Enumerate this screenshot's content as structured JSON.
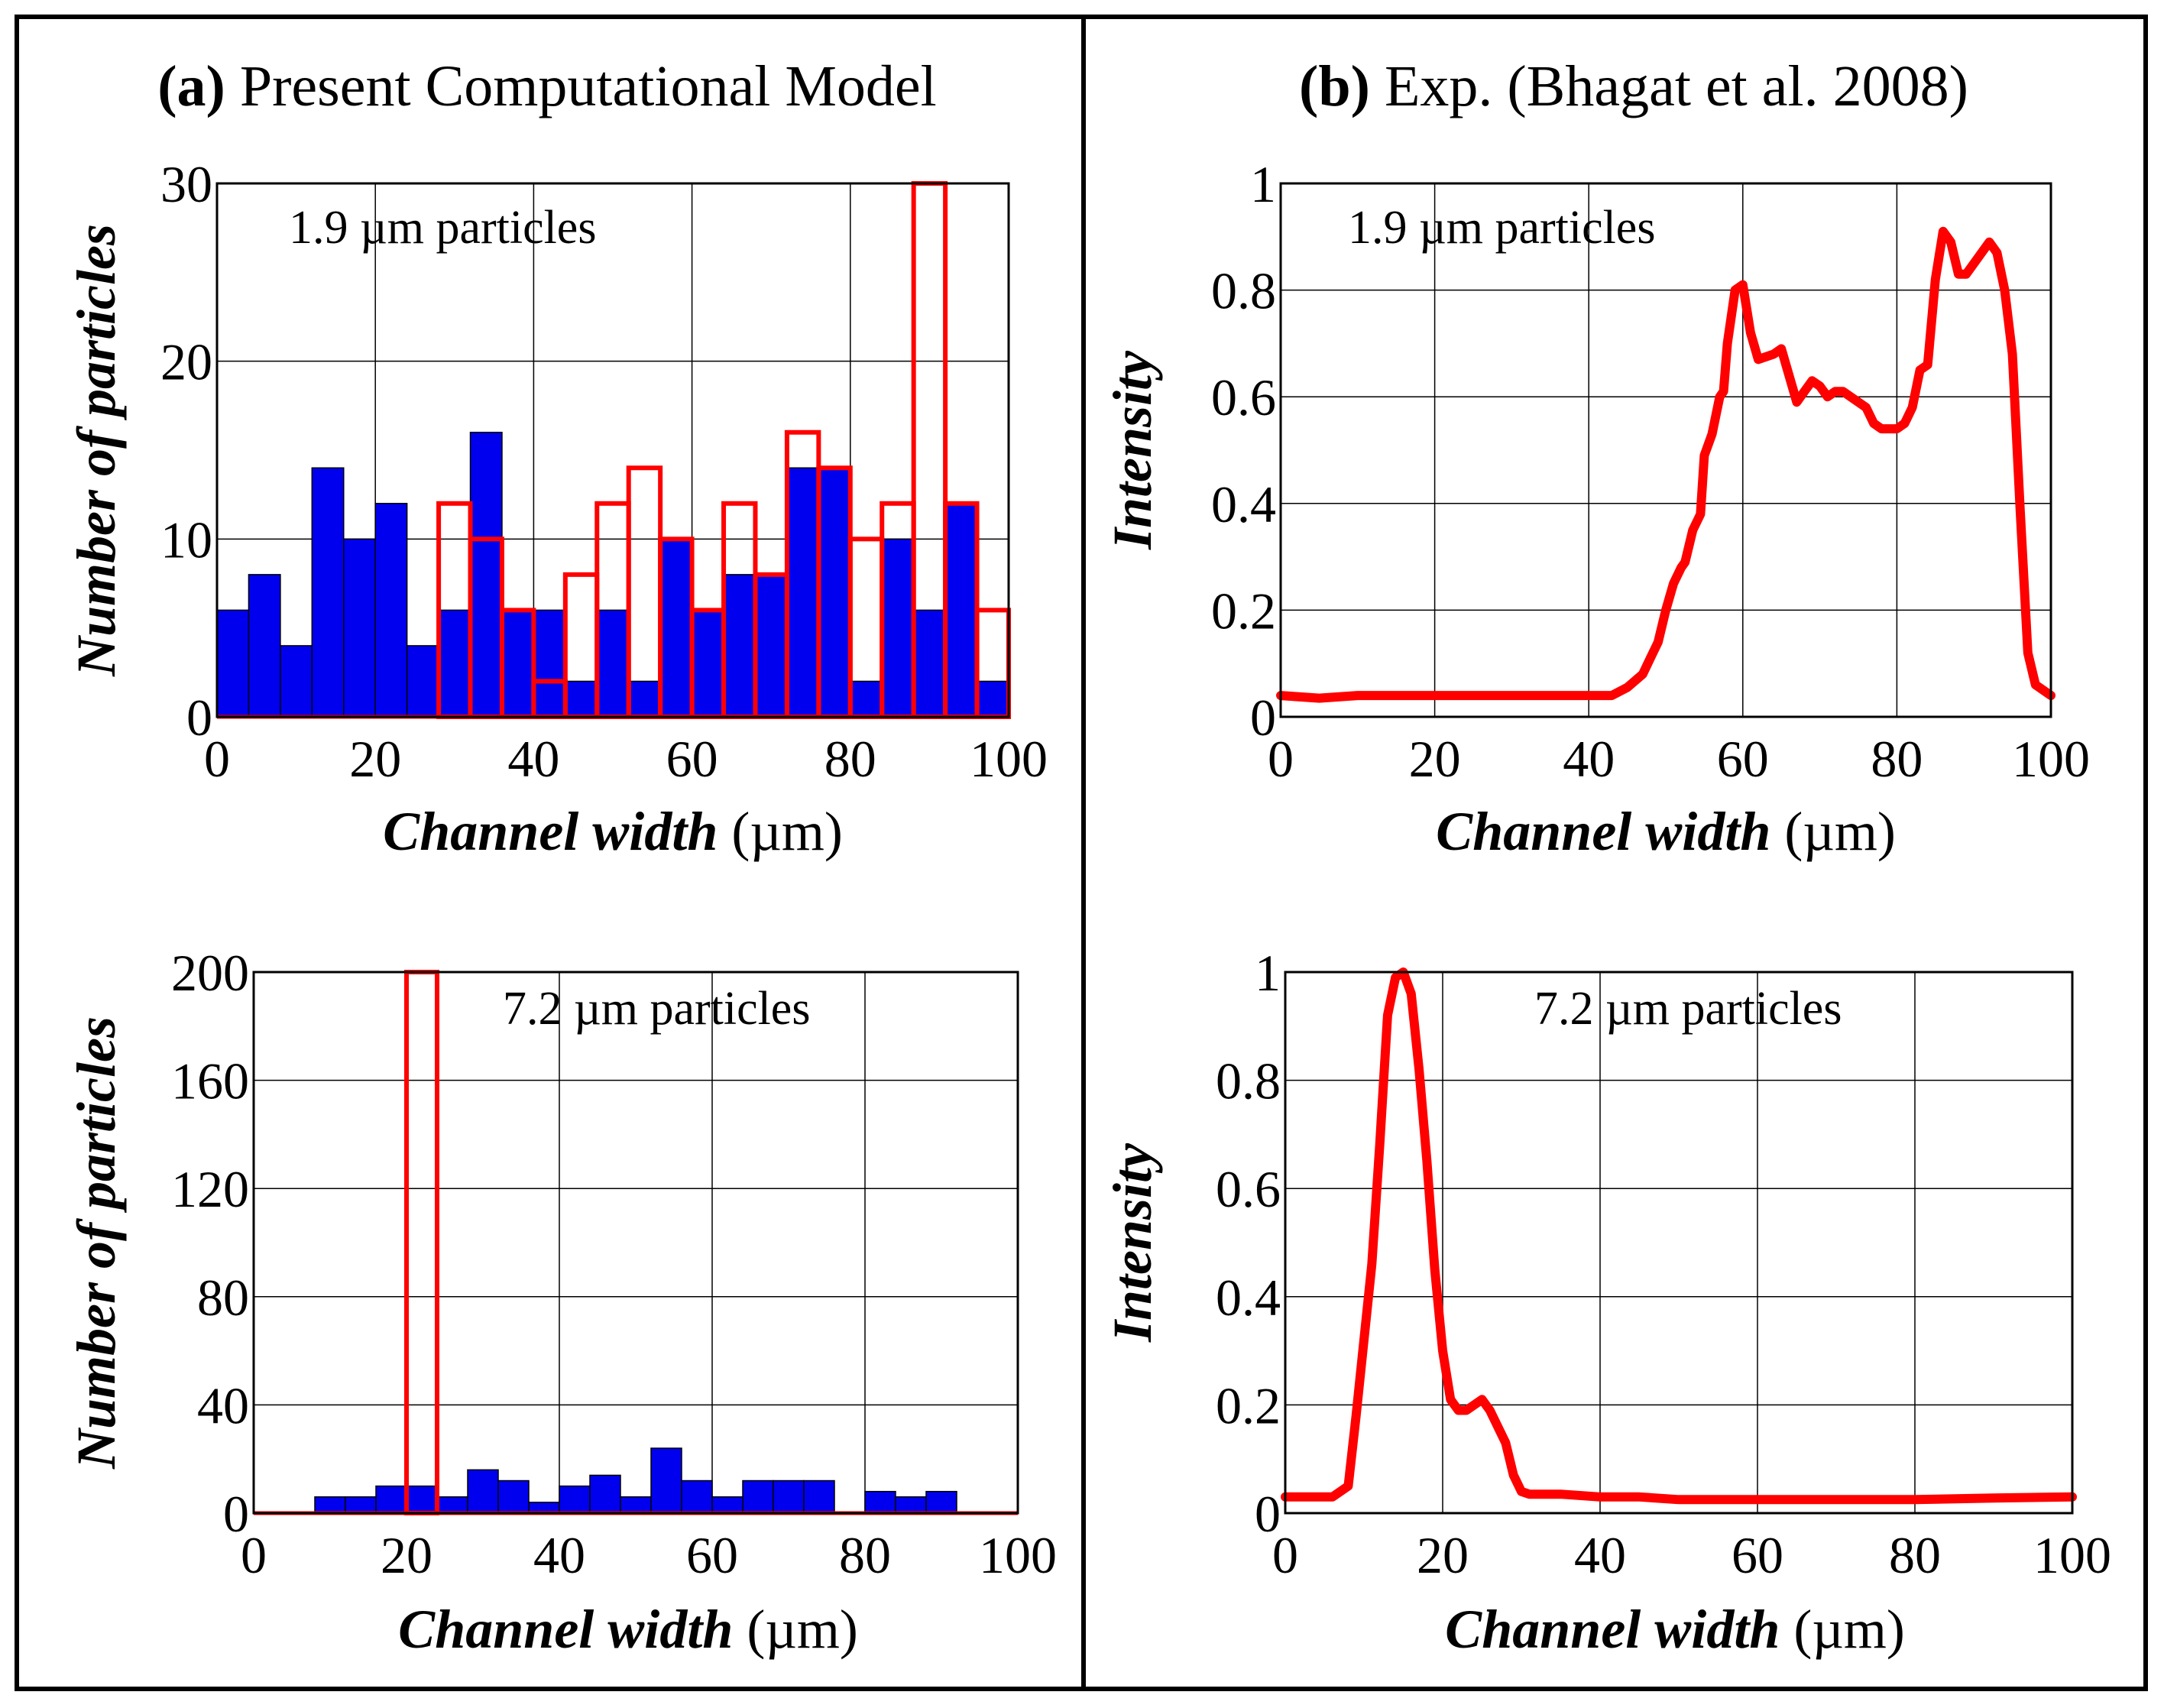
{
  "panels": {
    "a": {
      "label": "(a)",
      "title": "Present Computational Model"
    },
    "b": {
      "label": "(b)",
      "title": "Exp. (Bhagat et al. 2008)"
    }
  },
  "colors": {
    "blue_fill": "#0000ee",
    "red": "#ff0000",
    "frame": "#000000"
  },
  "chart_data": [
    {
      "id": "a-top",
      "type": "bar",
      "annotation": "1.9 µm particles",
      "xlabel": "Channel width",
      "xunit": "(µm)",
      "ylabel": "Number of particles",
      "xlim": [
        0,
        100
      ],
      "ylim": [
        0,
        30
      ],
      "xticks": [
        "0",
        "20",
        "40",
        "60",
        "80",
        "100"
      ],
      "yticks": [
        "0",
        "10",
        "20",
        "30"
      ],
      "ytick_values": [
        0,
        10,
        20,
        30
      ],
      "bin_width": 4,
      "series": [
        {
          "name": "blue (filled)",
          "style": "filled",
          "bins": [
            0,
            4,
            8,
            12,
            16,
            20,
            24,
            28,
            32,
            36,
            40,
            44,
            48,
            52,
            56,
            60,
            64,
            68,
            72,
            76,
            80,
            84,
            88,
            92,
            96
          ],
          "values": [
            6,
            8,
            4,
            14,
            10,
            12,
            4,
            6,
            16,
            6,
            6,
            2,
            6,
            2,
            10,
            6,
            8,
            8,
            14,
            14,
            2,
            10,
            6,
            12,
            2
          ]
        },
        {
          "name": "red (outline)",
          "style": "outline",
          "bins": [
            28,
            32,
            36,
            40,
            44,
            48,
            52,
            56,
            60,
            64,
            68,
            72,
            76,
            80,
            84,
            88,
            92,
            96
          ],
          "values": [
            12,
            10,
            6,
            2,
            8,
            12,
            14,
            10,
            6,
            12,
            8,
            16,
            14,
            10,
            12,
            30,
            12,
            6
          ]
        }
      ]
    },
    {
      "id": "b-top",
      "type": "line",
      "annotation": "1.9 µm particles",
      "xlabel": "Channel width",
      "xunit": "(µm)",
      "ylabel": "Intensity",
      "xlim": [
        0,
        100
      ],
      "ylim": [
        0,
        1
      ],
      "xticks": [
        "0",
        "20",
        "40",
        "60",
        "80",
        "100"
      ],
      "yticks": [
        "0",
        "0.2",
        "0.4",
        "0.6",
        "0.8",
        "1"
      ],
      "ytick_values": [
        0,
        0.2,
        0.4,
        0.6,
        0.8,
        1
      ],
      "series": [
        {
          "name": "intensity",
          "x": [
            0,
            5,
            10,
            20,
            30,
            35,
            40,
            43,
            45,
            47,
            48,
            49,
            50,
            51,
            52,
            52.5,
            53.5,
            54.5,
            55,
            56,
            57,
            57.5,
            58,
            59,
            60,
            61,
            62,
            64,
            65,
            66,
            67,
            68,
            69,
            70,
            71,
            72,
            73,
            75,
            76,
            77,
            78,
            79,
            80,
            81,
            82,
            83,
            84,
            85,
            86,
            87,
            88,
            89,
            90,
            91,
            92,
            93,
            94,
            95,
            96,
            97,
            98,
            99,
            100
          ],
          "y": [
            0.04,
            0.035,
            0.04,
            0.04,
            0.04,
            0.04,
            0.04,
            0.04,
            0.055,
            0.08,
            0.11,
            0.14,
            0.2,
            0.25,
            0.28,
            0.29,
            0.35,
            0.38,
            0.49,
            0.53,
            0.6,
            0.61,
            0.7,
            0.8,
            0.81,
            0.72,
            0.67,
            0.68,
            0.69,
            0.64,
            0.59,
            0.61,
            0.63,
            0.62,
            0.6,
            0.61,
            0.61,
            0.59,
            0.58,
            0.55,
            0.54,
            0.54,
            0.54,
            0.55,
            0.58,
            0.65,
            0.66,
            0.82,
            0.91,
            0.89,
            0.83,
            0.83,
            0.85,
            0.87,
            0.89,
            0.87,
            0.8,
            0.68,
            0.39,
            0.12,
            0.06,
            0.05,
            0.04
          ]
        }
      ]
    },
    {
      "id": "a-bottom",
      "type": "bar",
      "annotation": "7.2 µm particles",
      "xlabel": "Channel width",
      "xunit": "(µm)",
      "ylabel": "Number of particles",
      "xlim": [
        0,
        100
      ],
      "ylim": [
        0,
        200
      ],
      "xticks": [
        "0",
        "20",
        "40",
        "60",
        "80",
        "100"
      ],
      "yticks": [
        "0",
        "40",
        "80",
        "120",
        "160",
        "200"
      ],
      "ytick_values": [
        0,
        40,
        80,
        120,
        160,
        200
      ],
      "bin_width": 4,
      "series": [
        {
          "name": "blue (filled)",
          "style": "filled",
          "bins": [
            8,
            12,
            16,
            20,
            24,
            28,
            32,
            36,
            40,
            44,
            48,
            52,
            56,
            60,
            64,
            68,
            72,
            76,
            80,
            84,
            88
          ],
          "values": [
            6,
            6,
            10,
            10,
            6,
            16,
            12,
            4,
            10,
            14,
            6,
            24,
            12,
            6,
            12,
            12,
            12,
            0,
            8,
            6,
            8
          ]
        },
        {
          "name": "red (outline)",
          "style": "outline",
          "bins": [
            20
          ],
          "values": [
            200
          ]
        }
      ]
    },
    {
      "id": "b-bottom",
      "type": "line",
      "annotation": "7.2 µm particles",
      "xlabel": "Channel width",
      "xunit": "(µm)",
      "ylabel": "Intensity",
      "xlim": [
        0,
        100
      ],
      "ylim": [
        0,
        1
      ],
      "xticks": [
        "0",
        "20",
        "40",
        "60",
        "80",
        "100"
      ],
      "yticks": [
        "0",
        "0.2",
        "0.4",
        "0.6",
        "0.8",
        "1"
      ],
      "ytick_values": [
        0,
        0.2,
        0.4,
        0.6,
        0.8,
        1
      ],
      "series": [
        {
          "name": "intensity",
          "x": [
            0,
            3,
            6,
            8,
            9,
            10,
            11,
            12,
            13,
            14,
            15,
            16,
            17,
            18,
            19,
            20,
            21,
            22,
            23,
            24,
            25,
            26,
            27,
            28,
            29,
            30,
            31,
            33,
            35,
            40,
            45,
            50,
            60,
            70,
            80,
            90,
            100
          ],
          "y": [
            0.03,
            0.03,
            0.03,
            0.05,
            0.18,
            0.32,
            0.46,
            0.68,
            0.92,
            0.99,
            1.0,
            0.96,
            0.82,
            0.65,
            0.45,
            0.3,
            0.21,
            0.19,
            0.19,
            0.2,
            0.21,
            0.19,
            0.16,
            0.13,
            0.07,
            0.04,
            0.035,
            0.035,
            0.035,
            0.03,
            0.03,
            0.025,
            0.025,
            0.025,
            0.025,
            0.028,
            0.03
          ]
        }
      ]
    }
  ]
}
